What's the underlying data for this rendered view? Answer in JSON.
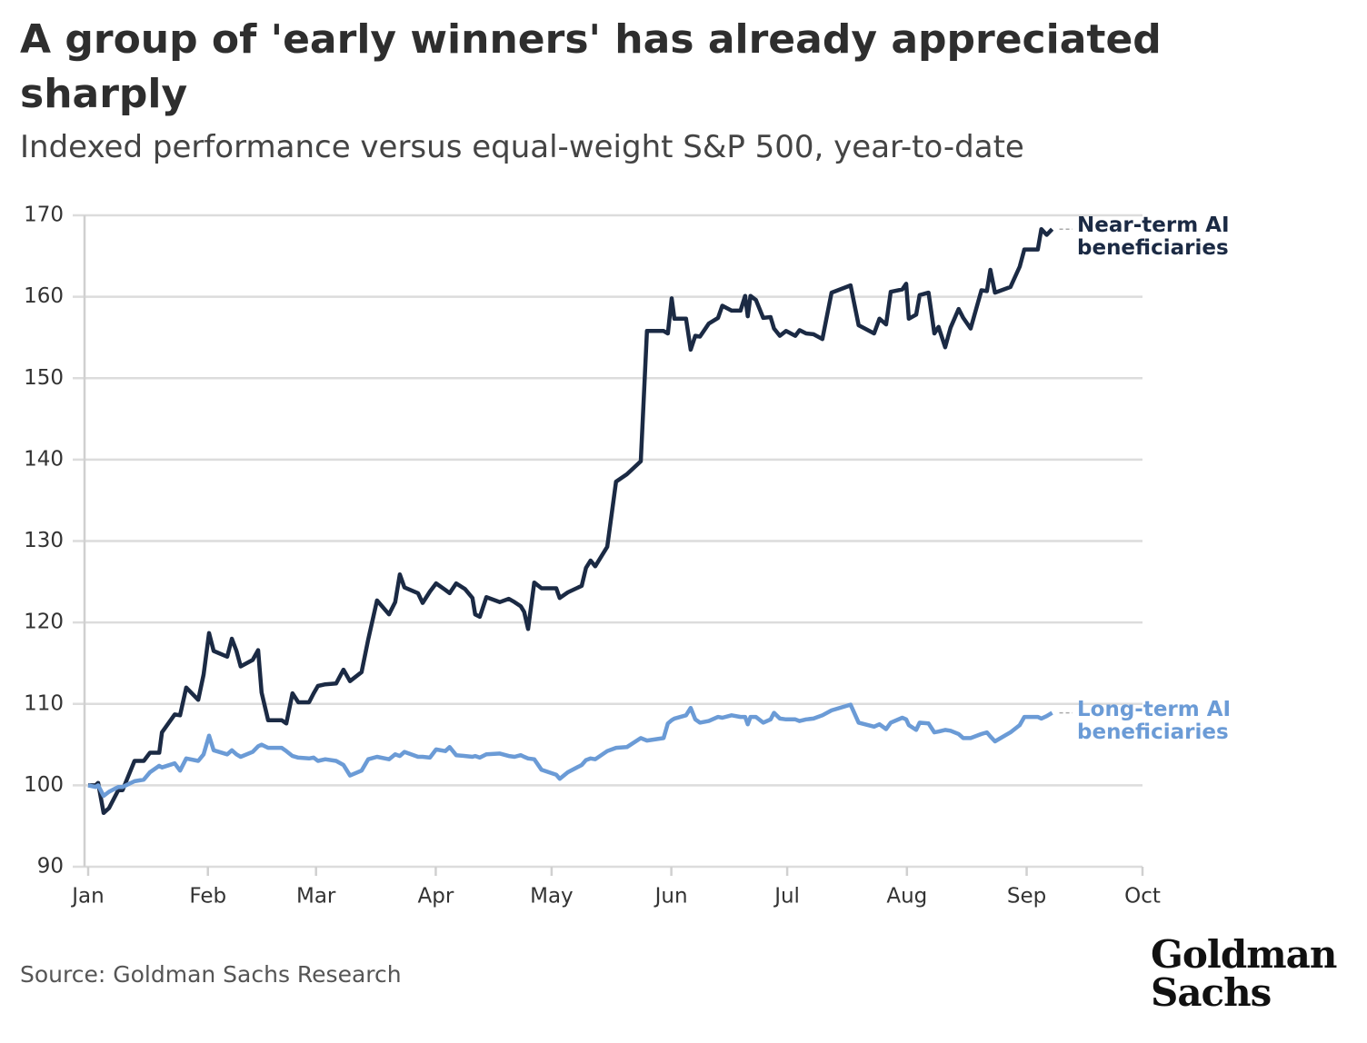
{
  "chart_data": {
    "type": "line",
    "title": "A group of 'early winners' has already appreciated sharply",
    "subtitle": "Indexed performance versus equal-weight S&P 500, year-to-date",
    "source": "Source: Goldman Sachs Research",
    "logo": "Goldman Sachs",
    "grid": true,
    "ylim": [
      90,
      170
    ],
    "yticks": [
      90,
      100,
      110,
      120,
      130,
      140,
      150,
      160,
      170
    ],
    "xlim": [
      0,
      273
    ],
    "xticks": [
      {
        "value": 0,
        "label": "Jan"
      },
      {
        "value": 31,
        "label": "Feb"
      },
      {
        "value": 59,
        "label": "Mar"
      },
      {
        "value": 90,
        "label": "Apr"
      },
      {
        "value": 120,
        "label": "May"
      },
      {
        "value": 151,
        "label": "Jun"
      },
      {
        "value": 181,
        "label": "Jul"
      },
      {
        "value": 212,
        "label": "Aug"
      },
      {
        "value": 243,
        "label": "Sep"
      },
      {
        "value": 273,
        "label": "Oct"
      }
    ],
    "x": [
      0,
      1.9,
      2.6,
      4,
      5.4,
      7.8,
      8.9,
      12,
      14.4,
      16,
      18.4,
      19.1,
      22.4,
      23.8,
      25.4,
      28.5,
      29.9,
      31.3,
      32.5,
      36,
      37.2,
      38.4,
      39.5,
      42.6,
      44,
      44.9,
      46.6,
      50.1,
      51.3,
      52.9,
      54.4,
      57.2,
      58.4,
      59.5,
      61.4,
      64.2,
      66.1,
      67.8,
      70.8,
      72.5,
      74.8,
      77.9,
      79.5,
      80.7,
      81.9,
      85.4,
      86.6,
      88.5,
      90.1,
      92.5,
      93.6,
      95.3,
      97.6,
      99.5,
      100.2,
      101.4,
      103.1,
      106.6,
      108.9,
      110.4,
      112,
      112.9,
      113.9,
      115.5,
      117.4,
      121.2,
      122.1,
      124.2,
      127.8,
      128.9,
      130.1,
      131.3,
      134.4,
      136.7,
      139.5,
      143.1,
      144.7,
      149,
      150.1,
      151.1,
      151.8,
      154.8,
      156,
      157.2,
      158.4,
      160.7,
      163.1,
      164.2,
      166.6,
      168.9,
      170.1,
      170.8,
      171.5,
      172.9,
      174.8,
      176.7,
      177.6,
      179.1,
      180.7,
      183.1,
      184.2,
      185.9,
      187.8,
      190.1,
      192.5,
      197.4,
      199.5,
      203.5,
      204.9,
      206.6,
      207.8,
      210.8,
      211.8,
      212.5,
      214.4,
      215.3,
      217.6,
      219.1,
      220.2,
      221.9,
      223.3,
      225.4,
      226.6,
      228.5,
      231.3,
      232.7,
      233.6,
      234.8,
      238.8,
      241.2,
      242.4,
      245.9,
      246.8,
      248.2,
      249.6
    ],
    "series": [
      {
        "name": "Near-term AI beneficiaries",
        "color": "#1b2a44",
        "values": [
          100,
          100,
          100.3,
          96.6,
          97.2,
          99.4,
          99.4,
          103,
          103,
          104,
          104,
          106.5,
          108.7,
          108.6,
          112,
          110.5,
          113.6,
          118.7,
          116.5,
          115.8,
          118,
          116.5,
          114.6,
          115.4,
          116.6,
          111.4,
          108,
          108,
          107.6,
          111.3,
          110.2,
          110.2,
          111.3,
          112.2,
          112.4,
          112.5,
          114.2,
          112.8,
          113.9,
          117.9,
          122.7,
          121,
          122.5,
          125.9,
          124.3,
          123.6,
          122.4,
          123.8,
          124.8,
          124,
          123.6,
          124.8,
          124.1,
          123,
          121,
          120.7,
          123.1,
          122.5,
          122.9,
          122.5,
          122,
          121.3,
          119.2,
          124.9,
          124.2,
          124.2,
          123,
          123.7,
          124.5,
          126.7,
          127.6,
          126.9,
          129.3,
          137.3,
          138.2,
          139.8,
          155.8,
          155.8,
          155.5,
          159.8,
          157.3,
          157.3,
          153.5,
          155.2,
          155.1,
          156.7,
          157.4,
          158.9,
          158.3,
          158.3,
          160.1,
          157.6,
          160.1,
          159.6,
          157.4,
          157.5,
          156.1,
          155.2,
          155.8,
          155.2,
          155.9,
          155.5,
          155.4,
          154.8,
          160.5,
          161.4,
          156.5,
          155.5,
          157.3,
          156.6,
          160.6,
          160.9,
          161.6,
          157.3,
          157.8,
          160.2,
          160.5,
          155.5,
          156.3,
          153.8,
          156.2,
          158.5,
          157.4,
          156.1,
          160.8,
          160.7,
          163.3,
          160.5,
          161.2,
          163.7,
          165.8,
          165.8,
          168.3,
          167.6,
          168.3
        ]
      },
      {
        "name": "Long-term AI beneficiaries",
        "color": "#6b9bd6",
        "values": [
          100,
          99.8,
          100,
          98.7,
          99.2,
          99.8,
          99.8,
          100.5,
          100.7,
          101.6,
          102.4,
          102.2,
          102.7,
          101.8,
          103.3,
          103,
          103.8,
          106.1,
          104.3,
          103.8,
          104.3,
          103.8,
          103.5,
          104.1,
          104.8,
          105,
          104.6,
          104.6,
          104.2,
          103.6,
          103.4,
          103.3,
          103.4,
          103,
          103.2,
          103,
          102.5,
          101.2,
          101.8,
          103.2,
          103.5,
          103.2,
          103.8,
          103.6,
          104.1,
          103.5,
          103.5,
          103.4,
          104.4,
          104.2,
          104.7,
          103.7,
          103.6,
          103.5,
          103.6,
          103.4,
          103.8,
          103.9,
          103.6,
          103.5,
          103.7,
          103.5,
          103.3,
          103.2,
          101.9,
          101.3,
          100.8,
          101.6,
          102.5,
          103.1,
          103.3,
          103.2,
          104.2,
          104.6,
          104.7,
          105.8,
          105.5,
          105.8,
          107.6,
          108,
          108.2,
          108.6,
          109.5,
          108.1,
          107.7,
          107.9,
          108.4,
          108.3,
          108.6,
          108.4,
          108.4,
          107.5,
          108.4,
          108.4,
          107.7,
          108.1,
          108.9,
          108.2,
          108.1,
          108.1,
          107.9,
          108.1,
          108.2,
          108.6,
          109.2,
          109.9,
          107.7,
          107.2,
          107.5,
          106.9,
          107.7,
          108.3,
          108.1,
          107.4,
          106.8,
          107.7,
          107.6,
          106.5,
          106.6,
          106.8,
          106.7,
          106.3,
          105.8,
          105.8,
          106.3,
          106.5,
          106,
          105.4,
          106.5,
          107.4,
          108.4,
          108.4,
          108.2,
          108.5,
          108.9
        ]
      }
    ]
  }
}
